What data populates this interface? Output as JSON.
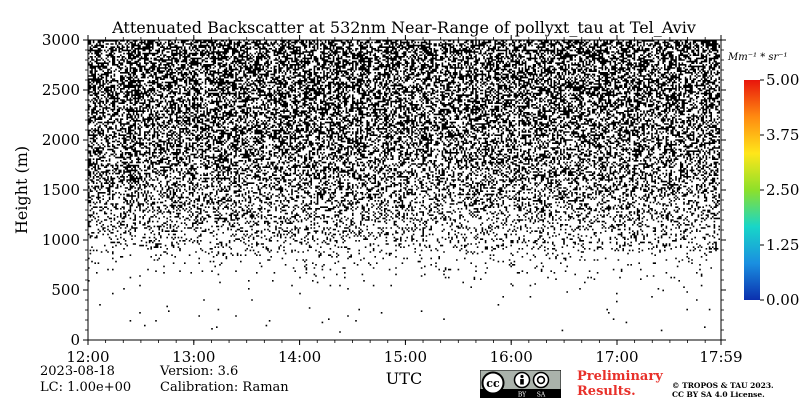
{
  "chart_data": {
    "type": "heatmap",
    "title": "Attenuated Backscatter at 532nm Near-Range of pollyxt_tau at Tel_Aviv",
    "xlabel": "UTC",
    "ylabel": "Height (m)",
    "xticks": [
      "12:00",
      "13:00",
      "14:00",
      "15:00",
      "16:00",
      "17:00",
      "17:59"
    ],
    "xrange_hours": [
      12.0,
      17.983
    ],
    "yticks": [
      0,
      500,
      1000,
      1500,
      2000,
      2500,
      3000
    ],
    "ylim": [
      0,
      3000
    ],
    "colorbar": {
      "label": "Mm⁻¹ * sr⁻¹",
      "ticks": [
        "0.00",
        "1.25",
        "2.50",
        "3.75",
        "5.00"
      ],
      "range": [
        0.0,
        5.0
      ],
      "colors": [
        "#0b2fae",
        "#1a8fe0",
        "#18d6c8",
        "#8de02a",
        "#ffe61a",
        "#ff8a10",
        "#e8150c"
      ]
    },
    "signal_profile": {
      "description_height_m": [
        0,
        600,
        800,
        1000,
        1500,
        2000,
        2500,
        3000
      ],
      "relative_density": [
        0.0,
        0.01,
        0.05,
        0.17,
        0.35,
        0.46,
        0.52,
        0.56
      ]
    }
  },
  "footer": {
    "date": "2023-08-18",
    "lc": "LC: 1.00e+00",
    "version": "Version: 3.6",
    "calibration": "Calibration: Raman",
    "preliminary_line1": "Preliminary",
    "preliminary_line2": "Results.",
    "copyright_line1": "© TROPOS & TAU 2023.",
    "copyright_line2": "CC BY SA 4.0 License.",
    "badge_cc": "cc",
    "badge_by": "BY",
    "badge_sa": "SA"
  }
}
